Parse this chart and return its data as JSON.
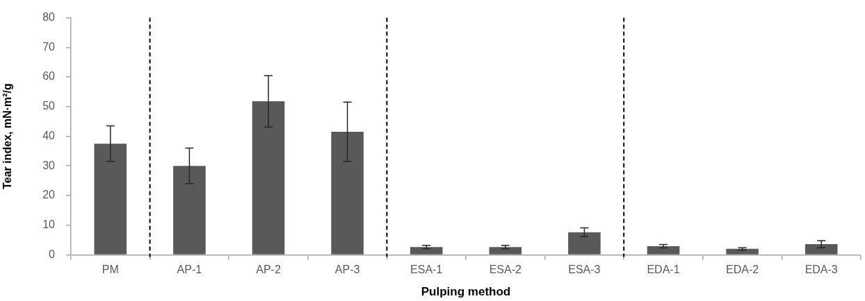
{
  "chart_data": {
    "type": "bar",
    "xlabel": "Pulping method",
    "ylabel": "Tear index, mN·m²/g",
    "categories": [
      "PM",
      "AP-1",
      "AP-2",
      "AP-3",
      "ESA-1",
      "ESA-2",
      "ESA-3",
      "EDA-1",
      "EDA-2",
      "EDA-3"
    ],
    "values": [
      37.5,
      30,
      51.8,
      41.5,
      2.6,
      2.6,
      7.6,
      2.9,
      2.0,
      3.6
    ],
    "errors": [
      6,
      6,
      8.7,
      10,
      0.6,
      0.6,
      1.5,
      0.6,
      0.4,
      1.2
    ],
    "color": "#595959",
    "ylim": [
      0,
      80
    ],
    "yticks": [
      0,
      10,
      20,
      30,
      40,
      50,
      60,
      70,
      80
    ]
  }
}
